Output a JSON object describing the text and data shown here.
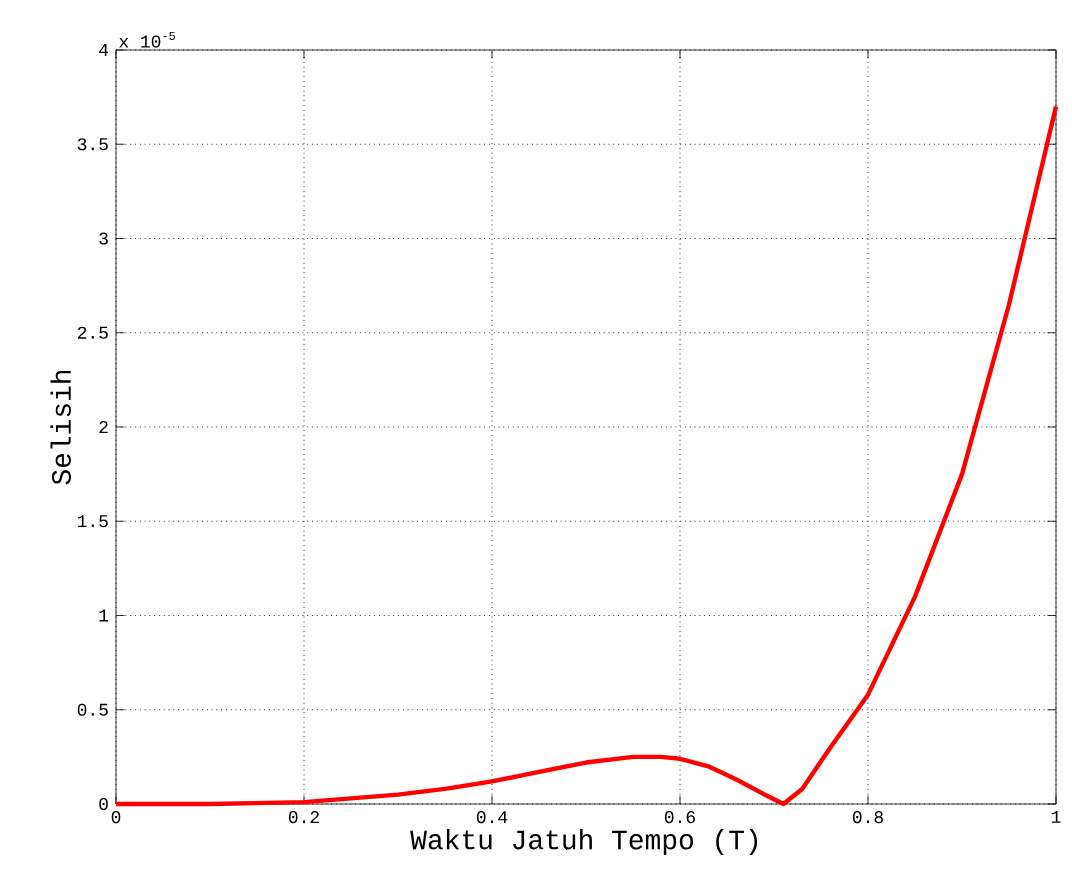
{
  "chart_data": {
    "type": "line",
    "xlabel": "Waktu Jatuh Tempo (T)",
    "ylabel": "Selisih",
    "annotations": [
      "x 10$^{-5}$"
    ],
    "series": [
      {
        "color": "#ff0000",
        "x": [
          0,
          0.1,
          0.2,
          0.25,
          0.3,
          0.35,
          0.4,
          0.45,
          0.5,
          0.55,
          0.58,
          0.6,
          0.63,
          0.66,
          0.69,
          0.71,
          0.73,
          0.76,
          0.8,
          0.85,
          0.9,
          0.95,
          1.0
        ],
        "values": [
          0,
          0,
          0.01,
          0.03,
          0.05,
          0.08,
          0.12,
          0.17,
          0.22,
          0.25,
          0.25,
          0.24,
          0.2,
          0.13,
          0.05,
          0.0,
          0.08,
          0.3,
          0.58,
          1.1,
          1.75,
          2.65,
          3.7
        ]
      }
    ],
    "xlim": [
      0,
      1
    ],
    "ylim": [
      0,
      4
    ],
    "xticks": [
      0,
      0.2,
      0.4,
      0.6,
      0.8,
      1
    ],
    "yticks": [
      0,
      0.5,
      1,
      1.5,
      2,
      2.5,
      3,
      3.5,
      4
    ],
    "grid": true,
    "marker": "none",
    "line_style": "solid"
  }
}
